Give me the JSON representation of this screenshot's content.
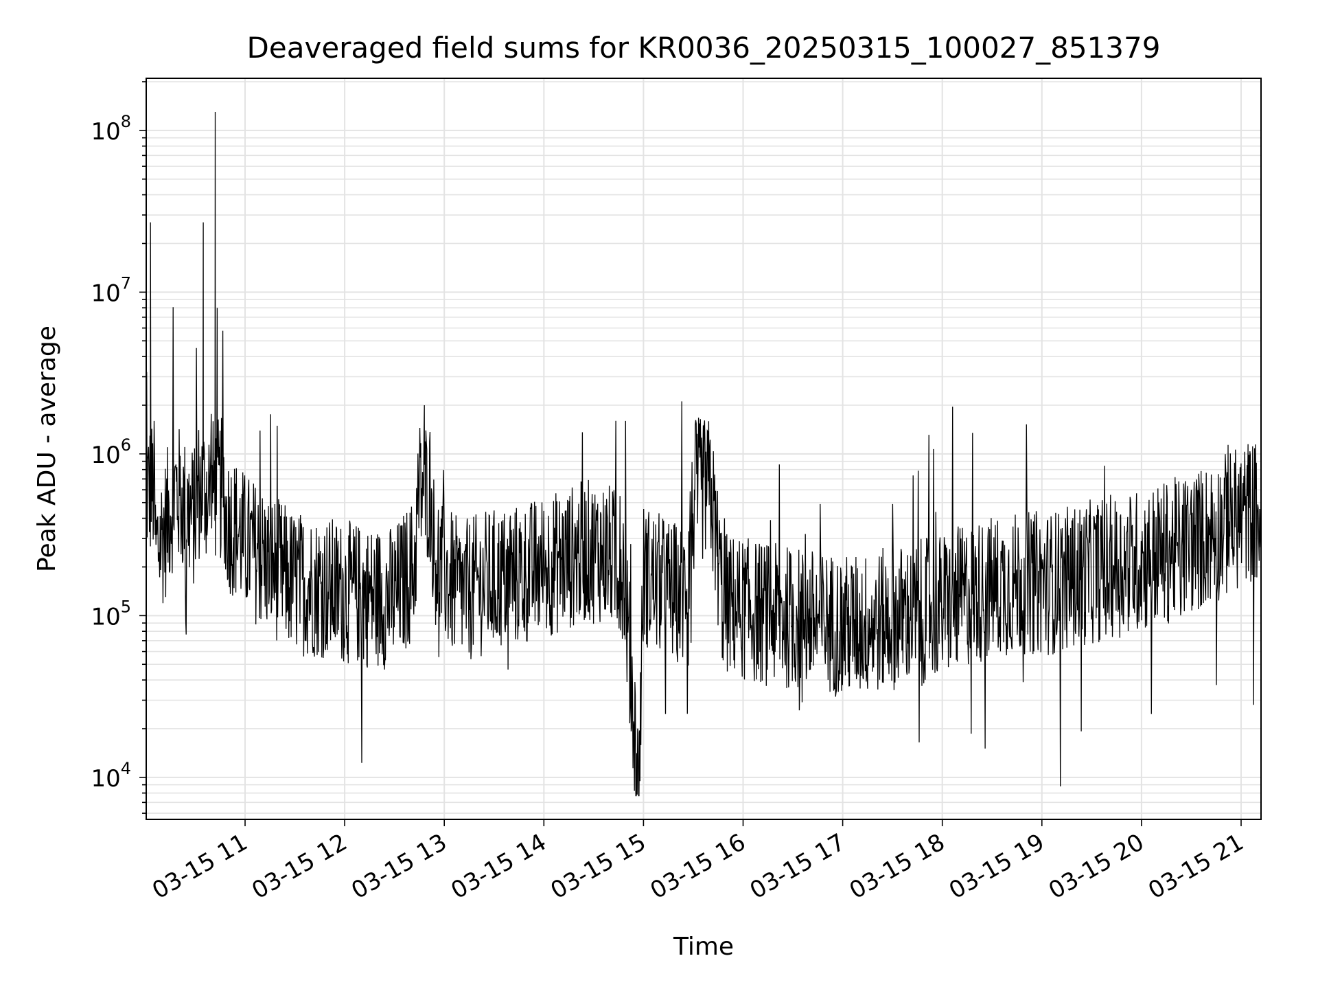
{
  "chart_data": {
    "type": "line",
    "title": "Deaveraged field sums for KR0036_20250315_100027_851379",
    "xlabel": "Time",
    "ylabel": "Peak ADU - average",
    "yscale": "log",
    "ylim": [
      5500,
      210000000
    ],
    "xlim": [
      "2025-03-15 10:00:27",
      "2025-03-15 21:12:00"
    ],
    "x_tick_labels": [
      "03-15 11",
      "03-15 12",
      "03-15 13",
      "03-15 14",
      "03-15 15",
      "03-15 16",
      "03-15 17",
      "03-15 18",
      "03-15 19",
      "03-15 20",
      "03-15 21"
    ],
    "x_tick_hours": [
      11,
      12,
      13,
      14,
      15,
      16,
      17,
      18,
      19,
      20,
      21
    ],
    "y_tick_base": "10",
    "y_tick_exponents": [
      "4",
      "5",
      "6",
      "7",
      "8"
    ],
    "grid": true,
    "line_color": "#000000",
    "grid_color": "#e3e3e3",
    "series": [
      {
        "x_hours": [
          10.01,
          10.05,
          10.1,
          10.2,
          10.3,
          10.4,
          10.5,
          10.58,
          10.63,
          10.7,
          10.72,
          10.8,
          10.9,
          11.0,
          11.2,
          11.5,
          11.8,
          12.0,
          12.3,
          12.5,
          12.7,
          12.8,
          12.9,
          13.0,
          13.1,
          13.2,
          13.4,
          13.6,
          13.8,
          14.0,
          14.2,
          14.4,
          14.6,
          14.8,
          14.95,
          15.0,
          15.2,
          15.4,
          15.6,
          15.8,
          16.0,
          16.3,
          16.6,
          16.9,
          17.0,
          17.3,
          17.6,
          17.9,
          18.2,
          18.5,
          18.8,
          19.1,
          19.4,
          19.7,
          20.0,
          20.3,
          20.6,
          20.9,
          21.1,
          21.2
        ],
        "y": [
          300000,
          27000000,
          250000,
          350000,
          600000,
          450000,
          400000,
          27000000,
          400000,
          130000000,
          8000000,
          400000,
          350000,
          280000,
          220000,
          160000,
          150000,
          140000,
          130000,
          130000,
          200000,
          2000000,
          250000,
          180000,
          150000,
          140000,
          160000,
          170000,
          180000,
          200000,
          220000,
          250000,
          250000,
          200000,
          8500,
          180000,
          150000,
          130000,
          1500000,
          120000,
          110000,
          100000,
          95000,
          90000,
          85000,
          90000,
          100000,
          110000,
          130000,
          150000,
          160000,
          160000,
          180000,
          200000,
          220000,
          250000,
          300000,
          380000,
          450000,
          420000
        ]
      }
    ]
  }
}
